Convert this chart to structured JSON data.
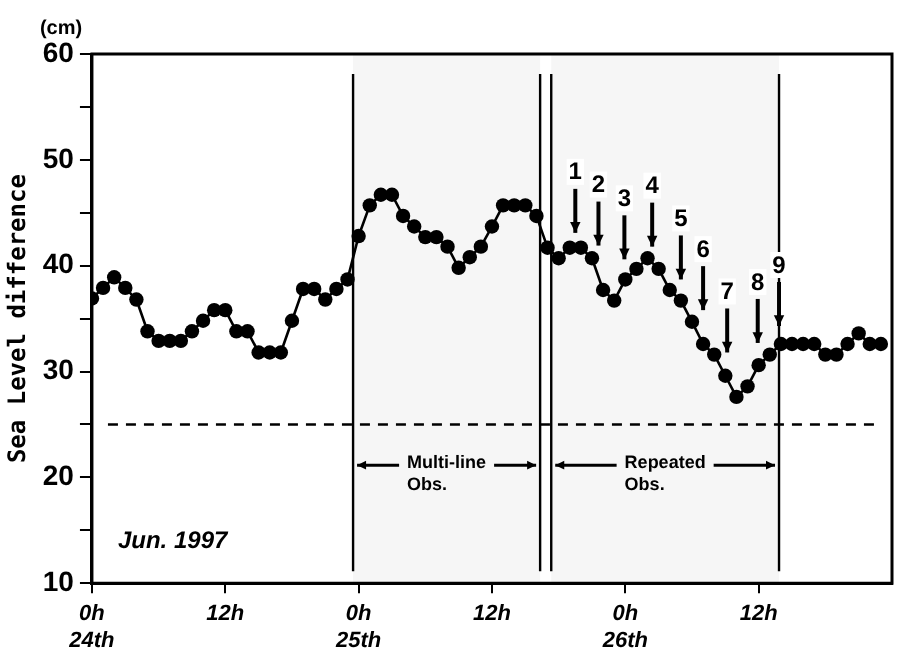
{
  "chart_data": {
    "type": "line",
    "ylabel": "Sea Level difference",
    "x": [
      "1997-06-24T00:00",
      "1997-06-24T01:00",
      "1997-06-24T02:00",
      "1997-06-24T03:00",
      "1997-06-24T04:00",
      "1997-06-24T05:00",
      "1997-06-24T06:00",
      "1997-06-24T07:00",
      "1997-06-24T08:00",
      "1997-06-24T09:00",
      "1997-06-24T10:00",
      "1997-06-24T11:00",
      "1997-06-24T12:00",
      "1997-06-24T13:00",
      "1997-06-24T14:00",
      "1997-06-24T15:00",
      "1997-06-24T16:00",
      "1997-06-24T17:00",
      "1997-06-24T18:00",
      "1997-06-24T19:00",
      "1997-06-24T20:00",
      "1997-06-24T21:00",
      "1997-06-24T22:00",
      "1997-06-24T23:00",
      "1997-06-25T00:00",
      "1997-06-25T01:00",
      "1997-06-25T02:00",
      "1997-06-25T03:00",
      "1997-06-25T04:00",
      "1997-06-25T05:00",
      "1997-06-25T06:00",
      "1997-06-25T07:00",
      "1997-06-25T08:00",
      "1997-06-25T09:00",
      "1997-06-25T10:00",
      "1997-06-25T11:00",
      "1997-06-25T12:00",
      "1997-06-25T13:00",
      "1997-06-25T14:00",
      "1997-06-25T15:00",
      "1997-06-25T16:00",
      "1997-06-25T17:00",
      "1997-06-25T18:00",
      "1997-06-25T19:00",
      "1997-06-25T20:00",
      "1997-06-25T21:00",
      "1997-06-25T22:00",
      "1997-06-25T23:00",
      "1997-06-26T00:00",
      "1997-06-26T01:00",
      "1997-06-26T02:00",
      "1997-06-26T03:00",
      "1997-06-26T04:00",
      "1997-06-26T05:00",
      "1997-06-26T06:00",
      "1997-06-26T07:00",
      "1997-06-26T08:00",
      "1997-06-26T09:00",
      "1997-06-26T10:00",
      "1997-06-26T11:00",
      "1997-06-26T12:00",
      "1997-06-26T13:00",
      "1997-06-26T14:00",
      "1997-06-26T15:00",
      "1997-06-26T16:00",
      "1997-06-26T17:00",
      "1997-06-26T18:00",
      "1997-06-26T19:00",
      "1997-06-26T20:00",
      "1997-06-26T21:00",
      "1997-06-26T22:00",
      "1997-06-26T23:00"
    ],
    "series": [
      {
        "color": "#000000",
        "values": [
          36.9,
          37.9,
          38.9,
          37.9,
          36.8,
          33.8,
          32.9,
          32.9,
          32.9,
          33.8,
          34.8,
          35.8,
          35.8,
          33.8,
          33.8,
          31.8,
          31.8,
          31.8,
          34.8,
          37.8,
          37.8,
          36.8,
          37.8,
          38.7,
          42.8,
          45.7,
          46.7,
          46.7,
          44.7,
          43.7,
          42.7,
          42.7,
          41.8,
          39.8,
          40.8,
          41.8,
          43.7,
          45.7,
          45.7,
          45.7,
          44.7,
          41.7,
          40.7,
          41.7,
          41.7,
          40.7,
          37.7,
          36.7,
          38.7,
          39.7,
          40.7,
          39.7,
          37.7,
          36.7,
          34.7,
          32.6,
          31.6,
          29.6,
          27.6,
          28.6,
          30.6,
          31.6,
          32.6,
          32.6,
          32.6,
          32.6,
          31.6,
          31.6,
          32.6,
          33.6,
          32.6,
          32.6
        ]
      }
    ],
    "xlim": [
      "1997-06-24T00:00",
      "1997-06-27T00:00"
    ],
    "xticks": [
      {
        "value": "1997-06-24T00:00",
        "label": "0h\n24th"
      },
      {
        "value": "1997-06-24T12:00",
        "label": "12h"
      },
      {
        "value": "1997-06-25T00:00",
        "label": "0h\n25th"
      },
      {
        "value": "1997-06-25T12:00",
        "label": "12h"
      },
      {
        "value": "1997-06-26T00:00",
        "label": "0h\n26th"
      },
      {
        "value": "1997-06-26T12:00",
        "label": "12h"
      }
    ],
    "ylim": [
      10,
      60
    ],
    "yticks": [
      10,
      {
        "value": 15,
        "label": null
      },
      20,
      {
        "value": 25,
        "label": null
      },
      30,
      {
        "value": 35,
        "label": null
      },
      40,
      {
        "value": 45,
        "label": null
      },
      50,
      {
        "value": 55,
        "label": null
      },
      60
    ],
    "ref_lines": [
      {
        "axis": "y",
        "value": 25,
        "line_style": "dashed",
        "color": "#000000"
      },
      {
        "axis": "x",
        "value": "1997-06-24T23:30",
        "color": "#000000"
      },
      {
        "axis": "x",
        "value": "1997-06-25T16:20",
        "color": "#000000"
      },
      {
        "axis": "x",
        "value": "1997-06-25T17:20",
        "color": "#000000"
      },
      {
        "axis": "x",
        "value": "1997-06-26T13:50",
        "color": "#000000"
      }
    ],
    "bands": [
      {
        "axis": "x",
        "from": "1997-06-24T23:30",
        "to": "1997-06-25T16:20",
        "label": "Multi-line Obs.",
        "color": "#f6f6f6"
      },
      {
        "axis": "x",
        "from": "1997-06-25T17:20",
        "to": "1997-06-26T13:50",
        "label": "Repeated Obs.",
        "color": "#f6f6f6"
      }
    ],
    "annotations": [
      "(cm)",
      "Jun. 1997",
      {
        "text": "1",
        "x": "1997-06-25T19:30",
        "y": 43.1
      },
      {
        "text": "2",
        "x": "1997-06-25T21:35",
        "y": 41.9
      },
      {
        "text": "3",
        "x": "1997-06-25T23:55",
        "y": 40.6
      },
      {
        "text": "4",
        "x": "1997-06-26T02:25",
        "y": 41.8
      },
      {
        "text": "5",
        "x": "1997-06-26T05:00",
        "y": 38.7
      },
      {
        "text": "6",
        "x": "1997-06-26T07:00",
        "y": 35.8
      },
      {
        "text": "7",
        "x": "1997-06-26T09:10",
        "y": 31.8
      },
      {
        "text": "8",
        "x": "1997-06-26T11:55",
        "y": 32.7
      },
      {
        "text": "9",
        "x": "1997-06-26T13:50",
        "y": 34.3
      }
    ],
    "grid": false,
    "legend": false,
    "marker": "circle",
    "line_style": "solid"
  }
}
